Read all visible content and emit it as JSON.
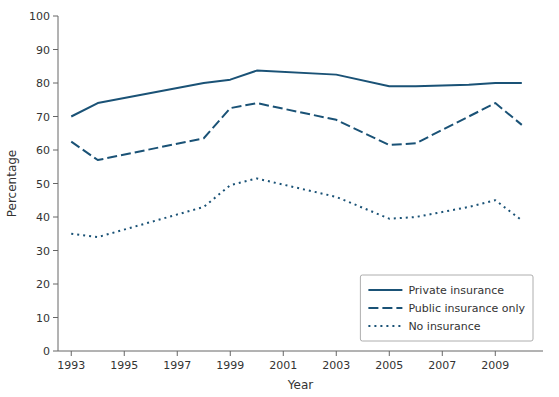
{
  "chart_data": {
    "type": "line",
    "x": [
      1993,
      1994,
      1998,
      1999,
      2000,
      2003,
      2005,
      2006,
      2008,
      2009,
      2010
    ],
    "series": [
      {
        "name": "Private insurance",
        "color": "#1a5276",
        "line_style": "solid",
        "values": [
          70.0,
          74.0,
          80.0,
          81.0,
          83.7,
          82.5,
          79.0,
          79.0,
          79.5,
          80.0,
          80.0
        ]
      },
      {
        "name": "Public insurance only",
        "color": "#1a5276",
        "line_style": "dashed",
        "values": [
          62.5,
          57.0,
          63.5,
          72.5,
          74.0,
          69.0,
          61.5,
          62.0,
          70.0,
          74.0,
          67.5
        ]
      },
      {
        "name": "No insurance",
        "color": "#1a5276",
        "line_style": "dotted",
        "values": [
          35.0,
          34.0,
          43.0,
          49.5,
          51.5,
          46.0,
          39.5,
          40.0,
          43.0,
          45.0,
          39.0
        ]
      }
    ],
    "xlabel": "Year",
    "ylabel": "Percentage",
    "xlim": [
      1992.5,
      2010.8
    ],
    "ylim": [
      0,
      100
    ],
    "xticks": [
      1993,
      1995,
      1997,
      1999,
      2001,
      2003,
      2005,
      2007,
      2009
    ],
    "yticks": [
      0,
      10,
      20,
      30,
      40,
      50,
      60,
      70,
      80,
      90,
      100
    ],
    "grid": false,
    "legend": "lower right"
  }
}
